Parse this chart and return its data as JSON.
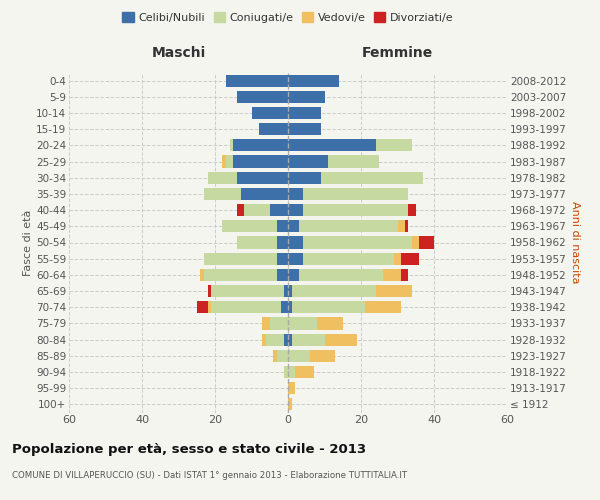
{
  "age_groups": [
    "100+",
    "95-99",
    "90-94",
    "85-89",
    "80-84",
    "75-79",
    "70-74",
    "65-69",
    "60-64",
    "55-59",
    "50-54",
    "45-49",
    "40-44",
    "35-39",
    "30-34",
    "25-29",
    "20-24",
    "15-19",
    "10-14",
    "5-9",
    "0-4"
  ],
  "birth_years": [
    "≤ 1912",
    "1913-1917",
    "1918-1922",
    "1923-1927",
    "1928-1932",
    "1933-1937",
    "1938-1942",
    "1943-1947",
    "1948-1952",
    "1953-1957",
    "1958-1962",
    "1963-1967",
    "1968-1972",
    "1973-1977",
    "1978-1982",
    "1983-1987",
    "1988-1992",
    "1993-1997",
    "1998-2002",
    "2003-2007",
    "2008-2012"
  ],
  "maschi": {
    "celibi": [
      0,
      0,
      0,
      0,
      1,
      0,
      2,
      1,
      3,
      3,
      3,
      3,
      5,
      13,
      14,
      15,
      15,
      8,
      10,
      14,
      17
    ],
    "coniugati": [
      0,
      0,
      1,
      3,
      5,
      5,
      19,
      20,
      20,
      20,
      11,
      15,
      7,
      10,
      8,
      2,
      1,
      0,
      0,
      0,
      0
    ],
    "vedovi": [
      0,
      0,
      0,
      1,
      1,
      2,
      1,
      0,
      1,
      0,
      0,
      0,
      0,
      0,
      0,
      1,
      0,
      0,
      0,
      0,
      0
    ],
    "divorziati": [
      0,
      0,
      0,
      0,
      0,
      0,
      3,
      1,
      0,
      0,
      0,
      0,
      2,
      0,
      0,
      0,
      0,
      0,
      0,
      0,
      0
    ]
  },
  "femmine": {
    "celibi": [
      0,
      0,
      0,
      0,
      1,
      0,
      1,
      1,
      3,
      4,
      4,
      3,
      4,
      4,
      9,
      11,
      24,
      9,
      9,
      10,
      14
    ],
    "coniugati": [
      0,
      0,
      2,
      6,
      9,
      8,
      20,
      23,
      23,
      25,
      30,
      27,
      29,
      29,
      28,
      14,
      10,
      0,
      0,
      0,
      0
    ],
    "vedovi": [
      1,
      2,
      5,
      7,
      9,
      7,
      10,
      10,
      5,
      2,
      2,
      2,
      0,
      0,
      0,
      0,
      0,
      0,
      0,
      0,
      0
    ],
    "divorziati": [
      0,
      0,
      0,
      0,
      0,
      0,
      0,
      0,
      2,
      5,
      4,
      1,
      2,
      0,
      0,
      0,
      0,
      0,
      0,
      0,
      0
    ]
  },
  "colors": {
    "celibi": "#3d6fa8",
    "coniugati": "#c5d9a0",
    "vedovi": "#f0c060",
    "divorziati": "#cc2222"
  },
  "legend_labels": [
    "Celibi/Nubili",
    "Coniugati/e",
    "Vedovi/e",
    "Divorziati/e"
  ],
  "title": "Popolazione per età, sesso e stato civile - 2013",
  "subtitle": "COMUNE DI VILLAPERUCCIO (SU) - Dati ISTAT 1° gennaio 2013 - Elaborazione TUTTITALIA.IT",
  "xlabel_left": "Maschi",
  "xlabel_right": "Femmine",
  "ylabel_left": "Fasce di età",
  "ylabel_right": "Anni di nascita",
  "xlim": 60,
  "background_color": "#f5f5f0",
  "grid_color": "#cccccc"
}
